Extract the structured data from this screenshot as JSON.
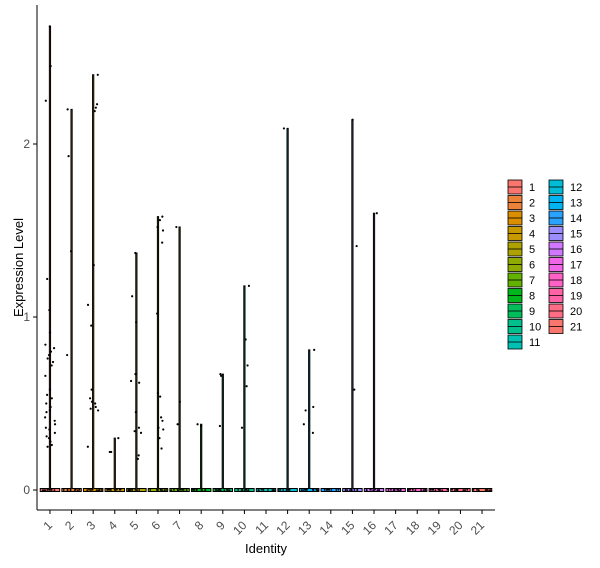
{
  "chart_data": {
    "type": "violin",
    "xlabel": "Identity",
    "ylabel": "Expression Level",
    "categories": [
      "1",
      "2",
      "3",
      "4",
      "5",
      "6",
      "7",
      "8",
      "9",
      "10",
      "11",
      "12",
      "13",
      "14",
      "15",
      "16",
      "17",
      "18",
      "19",
      "20",
      "21"
    ],
    "ylim": [
      -0.12,
      2.8
    ],
    "yticks": [
      0,
      1,
      2
    ],
    "legend": {
      "position": "right",
      "columns": 2,
      "title": ""
    },
    "colors": [
      "#F8766D",
      "#EC8239",
      "#DB8E00",
      "#C79800",
      "#AEA200",
      "#8FAA00",
      "#64B200",
      "#00B81B",
      "#00BD5C",
      "#00C08D",
      "#00C1B2",
      "#00BCD6",
      "#00B3F2",
      "#29A3FF",
      "#9C8DFF",
      "#D277FF",
      "#F166E8",
      "#FF61C7",
      "#FF63A6",
      "#FF6C85",
      "#F8766D"
    ],
    "series": [
      {
        "name": "1",
        "max": 2.68,
        "points": [
          2.68,
          2.45,
          2.25,
          1.22,
          1.04,
          0.91,
          0.84,
          0.82,
          0.8,
          0.78,
          0.76,
          0.74,
          0.72,
          0.66,
          0.58,
          0.55,
          0.53,
          0.5,
          0.48,
          0.46,
          0.45,
          0.42,
          0.4,
          0.38,
          0.36,
          0.35,
          0.33,
          0.31,
          0.3,
          0.28,
          0.26,
          0.25
        ]
      },
      {
        "name": "2",
        "max": 2.2,
        "points": [
          2.2,
          1.93,
          1.38,
          0.78
        ]
      },
      {
        "name": "3",
        "max": 2.4,
        "points": [
          2.4,
          2.23,
          2.21,
          2.19,
          1.3,
          1.07,
          0.95,
          0.58,
          0.53,
          0.51,
          0.5,
          0.48,
          0.47,
          0.46,
          0.25
        ]
      },
      {
        "name": "4",
        "max": 0.3,
        "points": [
          0.3,
          0.22,
          0.22
        ]
      },
      {
        "name": "5",
        "max": 1.37,
        "points": [
          1.37,
          1.12,
          0.97,
          0.67,
          0.63,
          0.62,
          0.45,
          0.36,
          0.34,
          0.33,
          0.2,
          0.18
        ]
      },
      {
        "name": "6",
        "max": 1.58,
        "points": [
          1.58,
          1.56,
          1.52,
          1.5,
          1.43,
          1.02,
          0.56,
          0.54,
          0.42,
          0.4,
          0.36,
          0.35,
          0.3,
          0.24
        ]
      },
      {
        "name": "7",
        "max": 1.52,
        "points": [
          1.52,
          0.51,
          0.38
        ]
      },
      {
        "name": "8",
        "max": 0.38,
        "points": [
          0.38,
          0.37
        ]
      },
      {
        "name": "9",
        "max": 0.67,
        "points": [
          0.67,
          0.66,
          0.37
        ]
      },
      {
        "name": "10",
        "max": 1.18,
        "points": [
          1.18,
          0.87,
          0.72,
          0.6,
          0.36
        ]
      },
      {
        "name": "11",
        "max": 0,
        "points": []
      },
      {
        "name": "12",
        "max": 2.09,
        "points": [
          2.09
        ]
      },
      {
        "name": "13",
        "max": 0.81,
        "points": [
          0.81,
          0.48,
          0.46,
          0.38,
          0.33
        ]
      },
      {
        "name": "14",
        "max": 0,
        "points": []
      },
      {
        "name": "15",
        "max": 2.14,
        "points": [
          2.14,
          1.41,
          0.58
        ]
      },
      {
        "name": "16",
        "max": 1.6,
        "points": [
          1.6
        ]
      },
      {
        "name": "17",
        "max": 0,
        "points": []
      },
      {
        "name": "18",
        "max": 0,
        "points": []
      },
      {
        "name": "19",
        "max": 0,
        "points": []
      },
      {
        "name": "20",
        "max": 0,
        "points": []
      },
      {
        "name": "21",
        "max": 0,
        "points": []
      }
    ]
  }
}
